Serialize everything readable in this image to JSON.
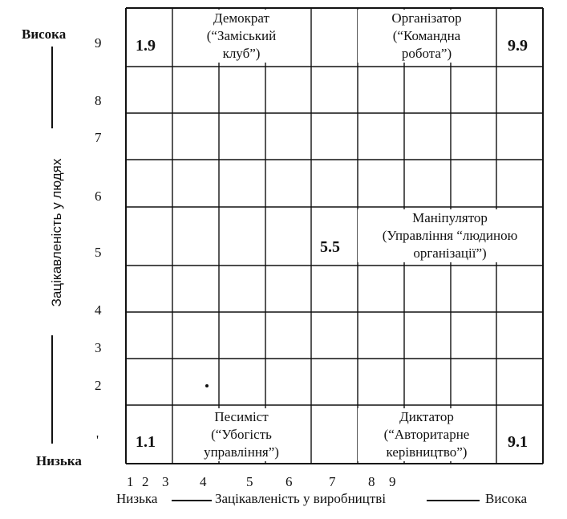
{
  "y_axis": {
    "title": "Зацікавленість у людях",
    "high": "Висока",
    "low": "Низька",
    "ticks": [
      "9",
      "8",
      "7",
      "6",
      "5",
      "4",
      "3",
      "2",
      "'"
    ]
  },
  "x_axis": {
    "title": "Зацікавленість у виробництві",
    "low": "Низька",
    "high": "Висока",
    "ticks": [
      "1",
      "2",
      "3",
      "4",
      "5",
      "6",
      "7",
      "8",
      "9"
    ]
  },
  "quadrants": {
    "top_left": {
      "name": "Демократ",
      "line1": "(“Заміський",
      "line2": "клуб”)",
      "score": "1.9"
    },
    "top_right": {
      "name": "Організатор",
      "line1": "(“Командна",
      "line2": "робота”)",
      "score": "9.9"
    },
    "middle": {
      "name": "Маніпулятор",
      "line1": "(Управління “людиною",
      "line2": "організації”)",
      "score": "5.5"
    },
    "bottom_left": {
      "name": "Песиміст",
      "line1": "(“Убогість",
      "line2": "управління”)",
      "score": "1.1"
    },
    "bottom_right": {
      "name": "Диктатор",
      "line1": "(“Авторитарне",
      "line2": "керівництво”)",
      "score": "9.1"
    }
  }
}
